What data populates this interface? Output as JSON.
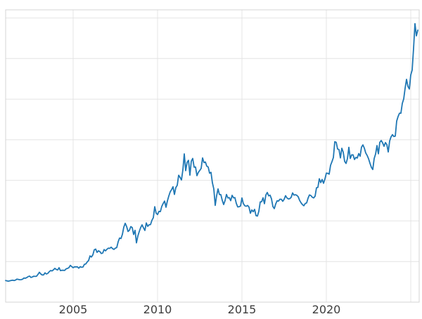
{
  "page": {
    "background": "#ffffff"
  },
  "axes": {
    "x_tick_labels": [
      "2005",
      "2010",
      "2015",
      "2020"
    ],
    "tick_label_color": "#3d3d3d"
  },
  "chart_data": {
    "type": "line",
    "title": "",
    "xlabel": "",
    "ylabel": "",
    "x_unit": "year",
    "x_start": 2001.0,
    "x_step": 0.0833333,
    "xlim": [
      2001.0,
      2025.5
    ],
    "ylim": [
      0,
      3600
    ],
    "x_ticks": [
      {
        "value": 2005,
        "label": "2005"
      },
      {
        "value": 2010,
        "label": "2010"
      },
      {
        "value": 2015,
        "label": "2015"
      },
      {
        "value": 2020,
        "label": "2020"
      },
      {
        "value": 2025,
        "label": ""
      }
    ],
    "y_ticks": [
      500,
      1000,
      1500,
      2000,
      2500,
      3000,
      3500
    ],
    "grid": true,
    "legend": false,
    "line_color": "#1f77b4",
    "line_width": 1.8,
    "grid_color": "#e4e4e4",
    "spine_color": "#d4d4d4",
    "background": "#ffffff",
    "series": [
      {
        "name": "series-1",
        "values": [
          266,
          262,
          258,
          263,
          267,
          270,
          266,
          272,
          283,
          280,
          276,
          277,
          282,
          297,
          294,
          302,
          314,
          321,
          304,
          310,
          319,
          317,
          319,
          342,
          368,
          347,
          334,
          336,
          361,
          346,
          355,
          375,
          389,
          384,
          398,
          416,
          402,
          396,
          424,
          388,
          393,
          392,
          391,
          410,
          415,
          425,
          453,
          438,
          424,
          435,
          434,
          435,
          418,
          437,
          429,
          433,
          466,
          471,
          495,
          513,
          569,
          556,
          582,
          644,
          653,
          613,
          633,
          623,
          599,
          604,
          647,
          632,
          651,
          665,
          662,
          677,
          659,
          650,
          665,
          672,
          743,
          789,
          783,
          834,
          923,
          971,
          933,
          871,
          885,
          930,
          918,
          833,
          884,
          730,
          814,
          870,
          919,
          952,
          916,
          883,
          975,
          934,
          953,
          955,
          1008,
          1040,
          1175,
          1096,
          1078,
          1118,
          1115,
          1179,
          1215,
          1244,
          1169,
          1246,
          1307,
          1359,
          1386,
          1421,
          1327,
          1411,
          1439,
          1563,
          1536,
          1505,
          1628,
          1826,
          1620,
          1722,
          1746,
          1564,
          1737,
          1770,
          1662,
          1664,
          1558,
          1598,
          1622,
          1648,
          1776,
          1719,
          1726,
          1675,
          1664,
          1588,
          1598,
          1469,
          1394,
          1192,
          1312,
          1394,
          1326,
          1324,
          1253,
          1202,
          1251,
          1326,
          1283,
          1288,
          1250,
          1315,
          1285,
          1287,
          1216,
          1173,
          1175,
          1184,
          1283,
          1214,
          1187,
          1180,
          1191,
          1171,
          1095,
          1135,
          1114,
          1142,
          1065,
          1060,
          1118,
          1234,
          1237,
          1285,
          1212,
          1320,
          1351,
          1309,
          1317,
          1272,
          1178,
          1152,
          1210,
          1248,
          1244,
          1268,
          1266,
          1242,
          1267,
          1311,
          1283,
          1271,
          1275,
          1291,
          1345,
          1318,
          1323,
          1315,
          1298,
          1253,
          1224,
          1201,
          1187,
          1215,
          1222,
          1281,
          1321,
          1313,
          1292,
          1283,
          1305,
          1409,
          1414,
          1520,
          1472,
          1511,
          1464,
          1517,
          1589,
          1586,
          1577,
          1686,
          1730,
          1781,
          1976,
          1968,
          1886,
          1879,
          1777,
          1895,
          1848,
          1734,
          1708,
          1768,
          1907,
          1770,
          1814,
          1814,
          1757,
          1783,
          1775,
          1829,
          1797,
          1909,
          1937,
          1897,
          1837,
          1807,
          1766,
          1711,
          1661,
          1634,
          1769,
          1824,
          1928,
          1827,
          1969,
          1990,
          1962,
          1919,
          1965,
          1940,
          1849,
          1984,
          2036,
          2063,
          2040,
          2044,
          2230,
          2286,
          2327,
          2327,
          2448,
          2503,
          2635,
          2744,
          2657,
          2625,
          2798,
          2858,
          3124,
          3430,
          3280,
          3350
        ]
      }
    ]
  }
}
